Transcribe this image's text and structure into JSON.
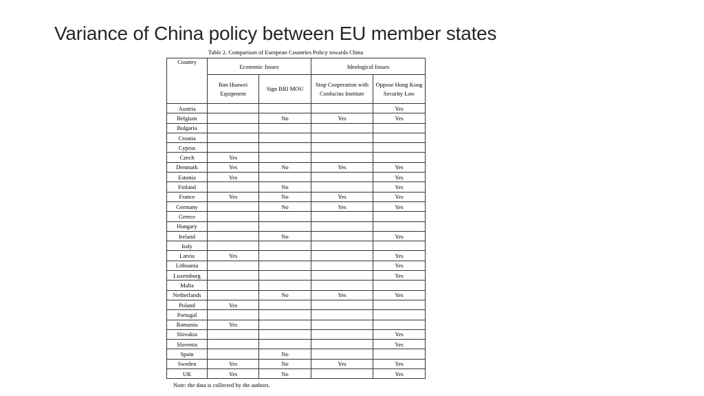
{
  "slide": {
    "title": "Variance of China policy between EU member states"
  },
  "table": {
    "caption": "Table 2. Comparison of European Countries Policy towards China",
    "header": {
      "country": "Country",
      "economic_group": "Economic Issues",
      "ideological_group": "Ideological Issues",
      "columns": [
        "Ban Huawei Equipment",
        "Sign BRI MOU",
        "Stop Cooperation with Confucius Institute",
        "Oppose Hong Kong Security Law"
      ]
    },
    "rows": [
      {
        "country": "Austria",
        "huawei": "",
        "bri": "",
        "confucius": "",
        "hk": "Yes"
      },
      {
        "country": "Belgium",
        "huawei": "",
        "bri": "No",
        "confucius": "Yes",
        "hk": "Yes"
      },
      {
        "country": "Bulgaria",
        "huawei": "",
        "bri": "",
        "confucius": "",
        "hk": ""
      },
      {
        "country": "Croatia",
        "huawei": "",
        "bri": "",
        "confucius": "",
        "hk": ""
      },
      {
        "country": "Cyprus",
        "huawei": "",
        "bri": "",
        "confucius": "",
        "hk": ""
      },
      {
        "country": "Czech",
        "huawei": "Yes",
        "bri": "",
        "confucius": "",
        "hk": ""
      },
      {
        "country": "Denmark",
        "huawei": "Yes",
        "bri": "No",
        "confucius": "Yes",
        "hk": "Yes"
      },
      {
        "country": "Estonia",
        "huawei": "Yes",
        "bri": "",
        "confucius": "",
        "hk": "Yes"
      },
      {
        "country": "Finland",
        "huawei": "",
        "bri": "No",
        "confucius": "",
        "hk": "Yes"
      },
      {
        "country": "France",
        "huawei": "Yes",
        "bri": "No",
        "confucius": "Yes",
        "hk": "Yes"
      },
      {
        "country": "Germany",
        "huawei": "",
        "bri": "No",
        "confucius": "Yes",
        "hk": "Yes"
      },
      {
        "country": "Greece",
        "huawei": "",
        "bri": "",
        "confucius": "",
        "hk": ""
      },
      {
        "country": "Hungary",
        "huawei": "",
        "bri": "",
        "confucius": "",
        "hk": ""
      },
      {
        "country": "Ireland",
        "huawei": "",
        "bri": "No",
        "confucius": "",
        "hk": "Yes"
      },
      {
        "country": "Italy",
        "huawei": "",
        "bri": "",
        "confucius": "",
        "hk": ""
      },
      {
        "country": "Latvia",
        "huawei": "Yes",
        "bri": "",
        "confucius": "",
        "hk": "Yes"
      },
      {
        "country": "Lithuania",
        "huawei": "",
        "bri": "",
        "confucius": "",
        "hk": "Yes"
      },
      {
        "country": "Luxemburg",
        "huawei": "",
        "bri": "",
        "confucius": "",
        "hk": "Yes"
      },
      {
        "country": "Malta",
        "huawei": "",
        "bri": "",
        "confucius": "",
        "hk": ""
      },
      {
        "country": "Netherlands",
        "huawei": "",
        "bri": "No",
        "confucius": "Yes",
        "hk": "Yes"
      },
      {
        "country": "Poland",
        "huawei": "Yes",
        "bri": "",
        "confucius": "",
        "hk": ""
      },
      {
        "country": "Portugal",
        "huawei": "",
        "bri": "",
        "confucius": "",
        "hk": ""
      },
      {
        "country": "Romania",
        "huawei": "Yes",
        "bri": "",
        "confucius": "",
        "hk": ""
      },
      {
        "country": "Slovakia",
        "huawei": "",
        "bri": "",
        "confucius": "",
        "hk": "Yes"
      },
      {
        "country": "Slovenia",
        "huawei": "",
        "bri": "",
        "confucius": "",
        "hk": "Yes"
      },
      {
        "country": "Spain",
        "huawei": "",
        "bri": "No",
        "confucius": "",
        "hk": ""
      },
      {
        "country": "Sweden",
        "huawei": "Yes",
        "bri": "No",
        "confucius": "Yes",
        "hk": "Yes"
      },
      {
        "country": "UK",
        "huawei": "Yes",
        "bri": "No",
        "confucius": "",
        "hk": "Yes"
      }
    ],
    "note": "Note: the data is collected by the authors."
  }
}
